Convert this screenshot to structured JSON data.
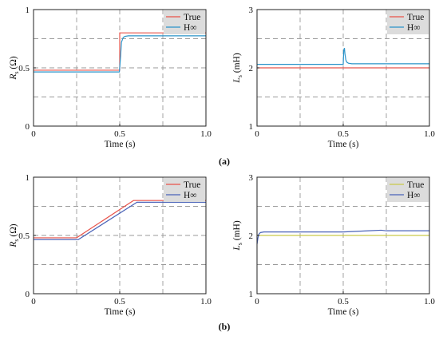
{
  "captions": [
    "(a)",
    "(b)"
  ],
  "chart_data": [
    {
      "type": "line",
      "xlabel": "Time (s)",
      "ylabel_main": "R",
      "ylabel_sub": "s",
      "ylabel_unit": " (Ω)",
      "xlim": [
        0,
        1.0
      ],
      "ylim": [
        0,
        1
      ],
      "xticks": [
        "0",
        "0.5",
        "1.0"
      ],
      "yticks": [
        "0",
        "0.5",
        "1"
      ],
      "legend_placement": "top-right",
      "grid": "dashed",
      "series": [
        {
          "name": "True",
          "color": "#e8534a",
          "x": [
            0,
            0.5,
            0.5,
            1.0
          ],
          "y": [
            0.48,
            0.48,
            0.8,
            0.8
          ]
        },
        {
          "name": "H∞",
          "color": "#2a93c9",
          "x": [
            0,
            0.498,
            0.505,
            0.51,
            0.52,
            0.53,
            0.55,
            0.6,
            1.0
          ],
          "y": [
            0.465,
            0.465,
            0.6,
            0.72,
            0.76,
            0.77,
            0.775,
            0.775,
            0.775
          ]
        }
      ]
    },
    {
      "type": "line",
      "xlabel": "Time (s)",
      "ylabel_main": "L",
      "ylabel_sub": "s",
      "ylabel_unit": " (mH)",
      "xlim": [
        0,
        1.0
      ],
      "ylim": [
        1,
        3
      ],
      "xticks": [
        "0",
        "0.5",
        "1.0"
      ],
      "yticks": [
        "1",
        "2",
        "3"
      ],
      "legend_placement": "top-right",
      "grid": "dashed",
      "series": [
        {
          "name": "True",
          "color": "#e8534a",
          "x": [
            0,
            1.0
          ],
          "y": [
            2.0,
            2.0
          ]
        },
        {
          "name": "H∞",
          "color": "#2a93c9",
          "x": [
            0,
            0.5,
            0.503,
            0.507,
            0.51,
            0.515,
            0.52,
            0.53,
            0.55,
            0.6,
            1.0
          ],
          "y": [
            2.06,
            2.06,
            2.3,
            2.34,
            2.24,
            2.14,
            2.1,
            2.08,
            2.07,
            2.07,
            2.07
          ]
        }
      ]
    },
    {
      "type": "line",
      "xlabel": "Time (s)",
      "ylabel_main": "R",
      "ylabel_sub": "s",
      "ylabel_unit": " (Ω)",
      "xlim": [
        0,
        1.0
      ],
      "ylim": [
        0,
        1
      ],
      "xticks": [
        "0",
        "0.5",
        "1.0"
      ],
      "yticks": [
        "0",
        "0.5",
        "1"
      ],
      "legend_placement": "top-right",
      "grid": "dashed",
      "series": [
        {
          "name": "True",
          "color": "#e8534a",
          "x": [
            0,
            0.25,
            0.58,
            1.0
          ],
          "y": [
            0.48,
            0.48,
            0.8,
            0.8
          ]
        },
        {
          "name": "H∞",
          "color": "#4a63b8",
          "x": [
            0,
            0.26,
            0.6,
            1.0
          ],
          "y": [
            0.465,
            0.465,
            0.785,
            0.785
          ]
        }
      ]
    },
    {
      "type": "line",
      "xlabel": "Time (s)",
      "ylabel_main": "L",
      "ylabel_sub": "s",
      "ylabel_unit": " (mH)",
      "xlim": [
        0,
        1.0
      ],
      "ylim": [
        1,
        3
      ],
      "xticks": [
        "0",
        "0.5",
        "1.0"
      ],
      "yticks": [
        "1",
        "2",
        "3"
      ],
      "legend_placement": "top-right",
      "grid": "dashed",
      "series": [
        {
          "name": "True",
          "color": "#c9c94a",
          "x": [
            0,
            1.0
          ],
          "y": [
            2.0,
            2.0
          ]
        },
        {
          "name": "H∞",
          "color": "#4a63b8",
          "x": [
            0,
            0.005,
            0.01,
            0.02,
            0.04,
            0.1,
            0.5,
            0.65,
            0.72,
            0.75,
            0.8,
            1.0
          ],
          "y": [
            1.85,
            1.95,
            2.02,
            2.05,
            2.06,
            2.06,
            2.06,
            2.08,
            2.09,
            2.08,
            2.08,
            2.08
          ]
        }
      ]
    }
  ]
}
